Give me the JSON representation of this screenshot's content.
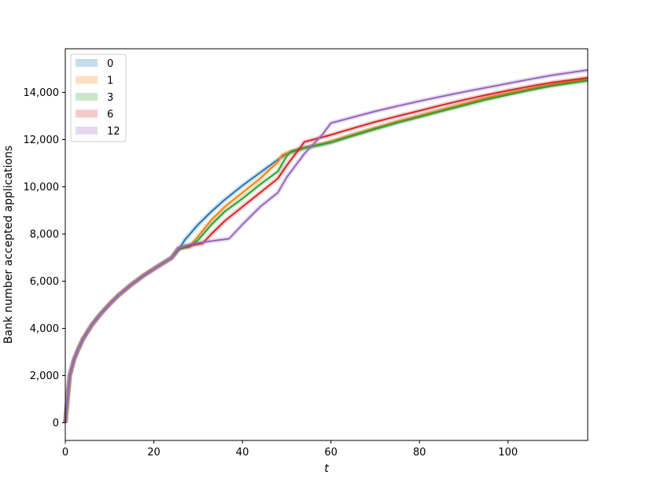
{
  "chart_data": {
    "type": "line",
    "title": "",
    "xlabel": "t",
    "ylabel": "Bank number accepted applications",
    "xlim": [
      0,
      118
    ],
    "ylim": [
      -750,
      15850
    ],
    "xticks": [
      0,
      20,
      40,
      60,
      80,
      100
    ],
    "yticks": [
      0,
      2000,
      4000,
      6000,
      8000,
      10000,
      12000,
      14000
    ],
    "xtick_labels": [
      "0",
      "20",
      "40",
      "60",
      "80",
      "100"
    ],
    "ytick_labels": [
      "0",
      "2,000",
      "4,000",
      "6,000",
      "8,000",
      "10,000",
      "12,000",
      "14,000"
    ],
    "grid": false,
    "legend_position": "top-left",
    "series": [
      {
        "name": "0",
        "color": "#1f77b4",
        "points": [
          [
            0,
            0
          ],
          [
            1,
            2000
          ],
          [
            2,
            2700
          ],
          [
            3,
            3150
          ],
          [
            4,
            3550
          ],
          [
            6,
            4150
          ],
          [
            8,
            4620
          ],
          [
            10,
            5030
          ],
          [
            12,
            5400
          ],
          [
            15,
            5870
          ],
          [
            18,
            6280
          ],
          [
            21,
            6640
          ],
          [
            24,
            6990
          ],
          [
            25.5,
            7300
          ],
          [
            27,
            7750
          ],
          [
            30,
            8400
          ],
          [
            33,
            8950
          ],
          [
            36,
            9450
          ],
          [
            40,
            10050
          ],
          [
            44,
            10600
          ],
          [
            48,
            11150
          ],
          [
            50,
            11400
          ],
          [
            54,
            11650
          ],
          [
            58,
            11800
          ],
          [
            60,
            11900
          ],
          [
            65,
            12200
          ],
          [
            70,
            12480
          ],
          [
            75,
            12750
          ],
          [
            80,
            13000
          ],
          [
            85,
            13250
          ],
          [
            90,
            13500
          ],
          [
            95,
            13750
          ],
          [
            100,
            13950
          ],
          [
            105,
            14150
          ],
          [
            110,
            14330
          ],
          [
            118,
            14550
          ]
        ]
      },
      {
        "name": "1",
        "color": "#ff7f0e",
        "points": [
          [
            0,
            0
          ],
          [
            1,
            2000
          ],
          [
            2,
            2700
          ],
          [
            3,
            3150
          ],
          [
            4,
            3550
          ],
          [
            6,
            4150
          ],
          [
            8,
            4620
          ],
          [
            10,
            5030
          ],
          [
            12,
            5400
          ],
          [
            15,
            5870
          ],
          [
            18,
            6280
          ],
          [
            21,
            6640
          ],
          [
            24,
            6990
          ],
          [
            25.5,
            7350
          ],
          [
            27,
            7480
          ],
          [
            28,
            7450
          ],
          [
            30,
            7900
          ],
          [
            33,
            8600
          ],
          [
            36,
            9150
          ],
          [
            40,
            9750
          ],
          [
            44,
            10350
          ],
          [
            48,
            11050
          ],
          [
            49,
            11350
          ],
          [
            52,
            11550
          ],
          [
            55,
            11700
          ],
          [
            58,
            11820
          ],
          [
            60,
            11920
          ],
          [
            65,
            12210
          ],
          [
            70,
            12490
          ],
          [
            75,
            12760
          ],
          [
            80,
            13010
          ],
          [
            85,
            13260
          ],
          [
            90,
            13510
          ],
          [
            95,
            13760
          ],
          [
            100,
            13960
          ],
          [
            105,
            14160
          ],
          [
            110,
            14340
          ],
          [
            118,
            14560
          ]
        ]
      },
      {
        "name": "3",
        "color": "#2ca02c",
        "points": [
          [
            0,
            0
          ],
          [
            1,
            2000
          ],
          [
            2,
            2700
          ],
          [
            3,
            3150
          ],
          [
            4,
            3550
          ],
          [
            6,
            4150
          ],
          [
            8,
            4620
          ],
          [
            10,
            5030
          ],
          [
            12,
            5400
          ],
          [
            15,
            5870
          ],
          [
            18,
            6280
          ],
          [
            21,
            6640
          ],
          [
            24,
            6990
          ],
          [
            25.5,
            7350
          ],
          [
            28,
            7450
          ],
          [
            30,
            7750
          ],
          [
            33,
            8400
          ],
          [
            36,
            8950
          ],
          [
            40,
            9500
          ],
          [
            44,
            10100
          ],
          [
            48,
            10650
          ],
          [
            50,
            11300
          ],
          [
            51,
            11500
          ],
          [
            54,
            11650
          ],
          [
            58,
            11800
          ],
          [
            60,
            11880
          ],
          [
            65,
            12170
          ],
          [
            70,
            12450
          ],
          [
            75,
            12720
          ],
          [
            80,
            12960
          ],
          [
            85,
            13210
          ],
          [
            90,
            13450
          ],
          [
            95,
            13690
          ],
          [
            100,
            13900
          ],
          [
            105,
            14100
          ],
          [
            110,
            14280
          ],
          [
            118,
            14500
          ]
        ]
      },
      {
        "name": "6",
        "color": "#d62728",
        "points": [
          [
            0,
            0
          ],
          [
            1,
            2000
          ],
          [
            2,
            2700
          ],
          [
            3,
            3150
          ],
          [
            4,
            3550
          ],
          [
            6,
            4150
          ],
          [
            8,
            4620
          ],
          [
            10,
            5030
          ],
          [
            12,
            5400
          ],
          [
            15,
            5870
          ],
          [
            18,
            6280
          ],
          [
            21,
            6640
          ],
          [
            24,
            6990
          ],
          [
            25.5,
            7400
          ],
          [
            28,
            7500
          ],
          [
            31,
            7600
          ],
          [
            33,
            8000
          ],
          [
            36,
            8550
          ],
          [
            40,
            9150
          ],
          [
            44,
            9750
          ],
          [
            48,
            10350
          ],
          [
            50,
            10900
          ],
          [
            54,
            11900
          ],
          [
            58,
            12100
          ],
          [
            60,
            12200
          ],
          [
            65,
            12480
          ],
          [
            70,
            12750
          ],
          [
            75,
            12990
          ],
          [
            80,
            13220
          ],
          [
            85,
            13460
          ],
          [
            90,
            13680
          ],
          [
            95,
            13890
          ],
          [
            100,
            14080
          ],
          [
            105,
            14260
          ],
          [
            110,
            14420
          ],
          [
            118,
            14620
          ]
        ]
      },
      {
        "name": "12",
        "color": "#9467bd",
        "points": [
          [
            0,
            0
          ],
          [
            1,
            2000
          ],
          [
            2,
            2700
          ],
          [
            3,
            3150
          ],
          [
            4,
            3550
          ],
          [
            6,
            4150
          ],
          [
            8,
            4620
          ],
          [
            10,
            5030
          ],
          [
            12,
            5400
          ],
          [
            15,
            5870
          ],
          [
            18,
            6280
          ],
          [
            21,
            6640
          ],
          [
            24,
            6990
          ],
          [
            25.5,
            7400
          ],
          [
            28,
            7550
          ],
          [
            31,
            7650
          ],
          [
            37,
            7800
          ],
          [
            40,
            8400
          ],
          [
            44,
            9150
          ],
          [
            48,
            9750
          ],
          [
            50,
            10400
          ],
          [
            54,
            11400
          ],
          [
            58,
            12200
          ],
          [
            60,
            12700
          ],
          [
            65,
            12950
          ],
          [
            70,
            13200
          ],
          [
            75,
            13420
          ],
          [
            80,
            13630
          ],
          [
            85,
            13830
          ],
          [
            90,
            14020
          ],
          [
            95,
            14200
          ],
          [
            100,
            14380
          ],
          [
            105,
            14560
          ],
          [
            110,
            14730
          ],
          [
            118,
            14950
          ]
        ]
      }
    ]
  }
}
